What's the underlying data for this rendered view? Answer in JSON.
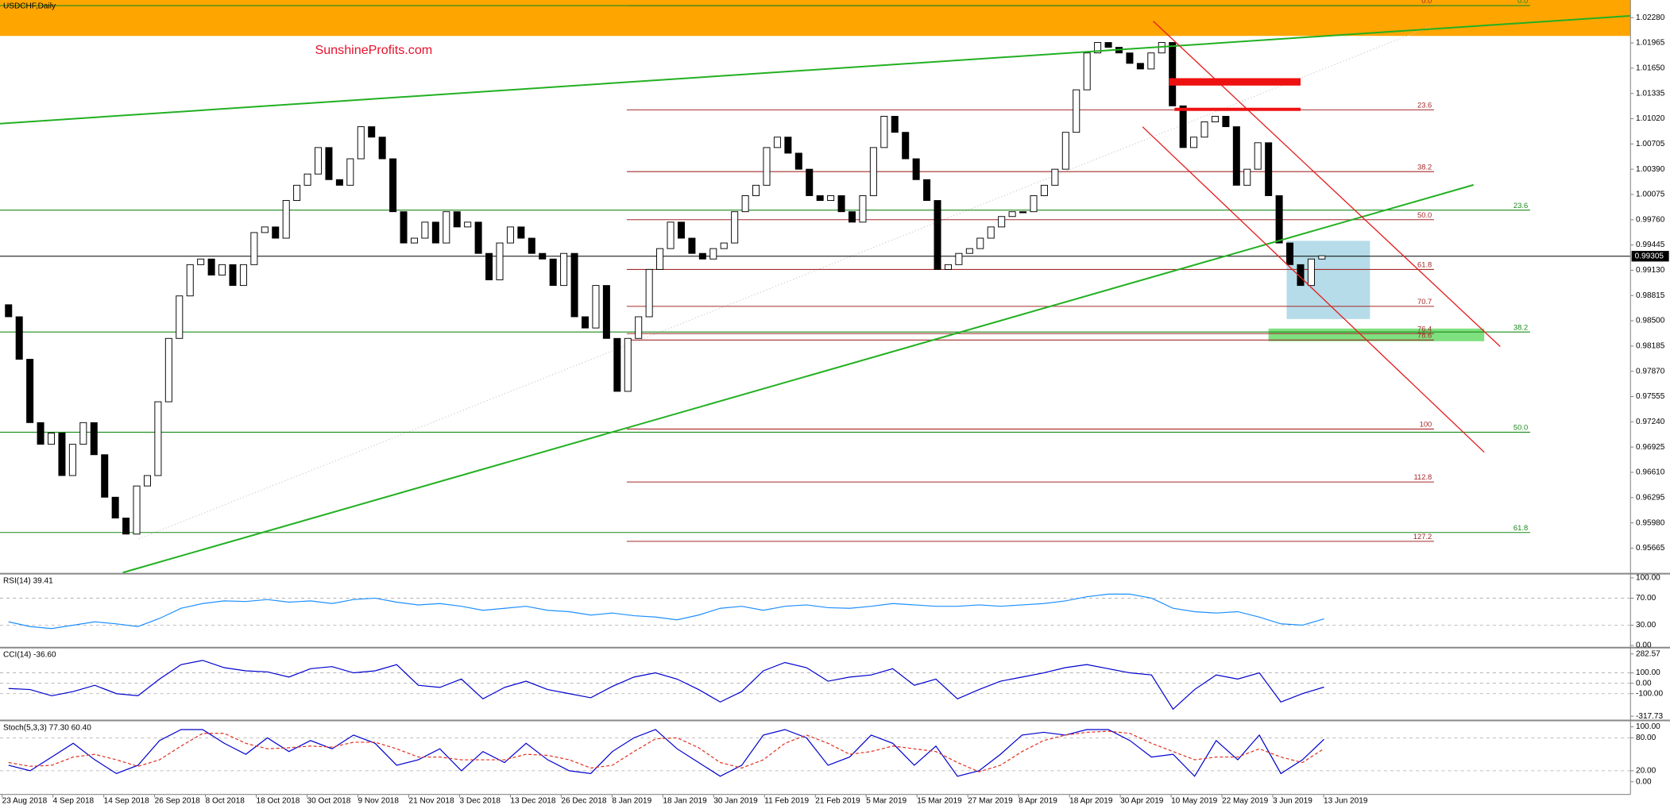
{
  "chart_data": [
    {
      "type": "candlestick",
      "title": "USDCHF,Daily",
      "watermark": "SunshineProfits.com",
      "x_labels": [
        "23 Aug 2018",
        "4 Sep 2018",
        "14 Sep 2018",
        "26 Sep 2018",
        "8 Oct 2018",
        "18 Oct 2018",
        "30 Oct 2018",
        "9 Nov 2018",
        "21 Nov 2018",
        "3 Dec 2018",
        "13 Dec 2018",
        "26 Dec 2018",
        "8 Jan 2019",
        "18 Jan 2019",
        "30 Jan 2019",
        "11 Feb 2019",
        "21 Feb 2019",
        "5 Mar 2019",
        "15 Mar 2019",
        "27 Mar 2019",
        "8 Apr 2019",
        "18 Apr 2019",
        "30 Apr 2019",
        "10 May 2019",
        "22 May 2019",
        "3 Jun 2019",
        "13 Jun 2019"
      ],
      "open": [
        0.987,
        0.9855,
        0.9802,
        0.9723,
        0.9696,
        0.971,
        0.9657,
        0.9696,
        0.9723,
        0.9683,
        0.963,
        0.9604,
        0.9584,
        0.9644,
        0.9657,
        0.9749,
        0.9828,
        0.9881,
        0.992,
        0.9927,
        0.9907,
        0.992,
        0.9894,
        0.992,
        0.996,
        0.9967,
        0.9953,
        1.0,
        1.0019,
        1.0033,
        1.0066,
        1.0026,
        1.0019,
        1.0052,
        1.0092,
        1.0079,
        1.0052,
        0.9986,
        0.9947,
        0.9953,
        0.9973,
        0.9947,
        0.9986,
        0.9967,
        0.9973,
        0.9934,
        0.9901,
        0.9947,
        0.9967,
        0.9953,
        0.9934,
        0.9927,
        0.9894,
        0.9934,
        0.9855,
        0.9841,
        0.9894,
        0.9828,
        0.9762,
        0.9828,
        0.9855,
        0.9914,
        0.994,
        0.9973,
        0.9953,
        0.9934,
        0.9927,
        0.994,
        0.9947,
        0.9986,
        1.0006,
        1.0019,
        1.0066,
        1.0079,
        1.0059,
        1.0039,
        1.0006,
        1.0,
        1.0006,
        0.9986,
        0.9973,
        1.0006,
        1.0066,
        1.0105,
        1.0085,
        1.0052,
        1.0026,
        1.0,
        0.9914,
        0.992,
        0.9934,
        0.994,
        0.9953,
        0.9967,
        0.998,
        0.9986,
        0.9986,
        1.0006,
        1.0019,
        1.0039,
        1.0085,
        1.0138,
        1.0184,
        1.0197,
        1.0191,
        1.0184,
        1.0171,
        1.0164,
        1.0184,
        1.0197,
        1.0118,
        1.0066,
        1.0079,
        1.0098,
        1.0105,
        1.0092,
        1.0019,
        1.0039,
        1.0072,
        1.0006,
        0.9947,
        0.992,
        0.9894,
        0.9927
      ],
      "close": [
        0.9855,
        0.9802,
        0.9723,
        0.9696,
        0.971,
        0.9657,
        0.9696,
        0.9723,
        0.9683,
        0.963,
        0.9604,
        0.9584,
        0.9644,
        0.9657,
        0.9749,
        0.9828,
        0.9881,
        0.992,
        0.9927,
        0.9907,
        0.992,
        0.9894,
        0.992,
        0.996,
        0.9967,
        0.9953,
        1.0,
        1.0019,
        1.0033,
        1.0066,
        1.0026,
        1.0019,
        1.0052,
        1.0092,
        1.0079,
        1.0052,
        0.9986,
        0.9947,
        0.9953,
        0.9973,
        0.9947,
        0.9986,
        0.9967,
        0.9973,
        0.9934,
        0.9901,
        0.9947,
        0.9967,
        0.9953,
        0.9934,
        0.9927,
        0.9894,
        0.9934,
        0.9855,
        0.9841,
        0.9894,
        0.9828,
        0.9762,
        0.9828,
        0.9855,
        0.9914,
        0.994,
        0.9973,
        0.9953,
        0.9934,
        0.9927,
        0.994,
        0.9947,
        0.9986,
        1.0006,
        1.0019,
        1.0066,
        1.0079,
        1.0059,
        1.0039,
        1.0006,
        1.0,
        1.0006,
        0.9986,
        0.9973,
        1.0006,
        1.0066,
        1.0105,
        1.0085,
        1.0052,
        1.0026,
        1.0,
        0.9914,
        0.992,
        0.9934,
        0.994,
        0.9953,
        0.9967,
        0.998,
        0.9986,
        0.9986,
        1.0006,
        1.0019,
        1.0039,
        1.0085,
        1.0138,
        1.0184,
        1.0197,
        1.0191,
        1.0184,
        1.0171,
        1.0164,
        1.0184,
        1.0197,
        1.0118,
        1.0066,
        1.0079,
        1.0098,
        1.0105,
        1.0092,
        1.0019,
        1.0039,
        1.0072,
        1.0006,
        0.9947,
        0.992,
        0.9894,
        0.9927,
        0.9931
      ],
      "ylim": [
        0.9536,
        1.025
      ],
      "yticks": [
        {
          "value": 1.0228,
          "label": "1.02280"
        },
        1.01965,
        {
          "value": 1.0165,
          "label": "1.01650"
        },
        1.01335,
        {
          "value": 1.0102,
          "label": "1.01020"
        },
        1.00705,
        {
          "value": 1.0039,
          "label": "1.00390"
        },
        1.00075,
        {
          "value": 0.9976,
          "label": "0.99760"
        },
        0.99445,
        {
          "value": 0.9913,
          "label": "0.99130"
        },
        0.98815,
        {
          "value": 0.985,
          "label": "0.98500"
        },
        0.98185,
        {
          "value": 0.9787,
          "label": "0.97870"
        },
        0.97555,
        {
          "value": 0.9724,
          "label": "0.97240"
        },
        0.96925,
        {
          "value": 0.9661,
          "label": "0.96610"
        },
        0.96295,
        {
          "value": 0.9598,
          "label": "0.95980"
        },
        0.95665
      ],
      "last_price": 0.99305,
      "fib_red": {
        "color": "#a52a2a",
        "levels": [
          {
            "value": 0,
            "label": "0.0"
          },
          23.6,
          38.2,
          {
            "value": 50,
            "label": "50.0"
          },
          61.8,
          70.7,
          76.4,
          78.6,
          100,
          112.8,
          127.2
        ],
        "prices": [
          1.0243,
          1.0113,
          1.0036,
          0.9976,
          0.9914,
          0.9868,
          0.9834,
          0.9826,
          0.9715,
          0.9649,
          0.9575
        ]
      },
      "fib_green": {
        "color": "#1a8a1a",
        "levels": [
          {
            "value": 0,
            "label": "0.0"
          },
          23.6,
          38.2,
          {
            "value": 50,
            "label": "50.0"
          },
          61.8
        ],
        "prices": [
          1.0243,
          0.9988,
          0.9836,
          0.9711,
          0.9586
        ]
      }
    },
    {
      "type": "line",
      "title": "RSI(14) 39.41",
      "ylim": [
        0,
        100
      ],
      "yticks": [
        {
          "value": 100,
          "label": "100.00"
        },
        {
          "value": 70,
          "label": "70.00"
        },
        {
          "value": 30,
          "label": "30.00"
        },
        {
          "value": 0,
          "label": "0.00"
        }
      ],
      "series": [
        {
          "color": "#1e90ff",
          "values": [
            35,
            28,
            25,
            30,
            35,
            32,
            28,
            40,
            55,
            62,
            66,
            65,
            68,
            64,
            66,
            62,
            68,
            70,
            64,
            60,
            62,
            58,
            52,
            55,
            58,
            52,
            50,
            45,
            48,
            44,
            42,
            38,
            45,
            55,
            58,
            52,
            58,
            60,
            56,
            55,
            58,
            62,
            60,
            58,
            58,
            60,
            58,
            60,
            62,
            66,
            72,
            76,
            76,
            70,
            55,
            50,
            48,
            50,
            42,
            32,
            30,
            39.41
          ]
        }
      ]
    },
    {
      "type": "line",
      "title": "CCI(14) -36.60",
      "ylim": [
        -317.73,
        282.57
      ],
      "yticks": [
        282.57,
        {
          "value": 100,
          "label": "100.00"
        },
        {
          "value": 0,
          "label": "0.00"
        },
        {
          "value": -100,
          "label": "-100.00"
        },
        -317.73
      ],
      "series": [
        {
          "color": "#0000cd",
          "values": [
            -50,
            -60,
            -120,
            -80,
            -20,
            -100,
            -120,
            40,
            180,
            220,
            150,
            120,
            110,
            60,
            140,
            160,
            100,
            120,
            180,
            -20,
            -40,
            40,
            -150,
            -40,
            20,
            -60,
            -100,
            -140,
            -30,
            60,
            100,
            40,
            -60,
            -180,
            -80,
            120,
            200,
            150,
            20,
            60,
            80,
            140,
            -20,
            40,
            -150,
            -60,
            20,
            60,
            100,
            150,
            180,
            140,
            100,
            80,
            -250,
            -60,
            80,
            40,
            100,
            -180,
            -100,
            -36.6
          ]
        }
      ]
    },
    {
      "type": "line",
      "title": "Stoch(5,3,3) 77.30 60.40",
      "ylim": [
        0,
        100
      ],
      "yticks": [
        {
          "value": 100,
          "label": "100.00"
        },
        {
          "value": 80,
          "label": "80.00"
        },
        {
          "value": 20,
          "label": "20.00"
        },
        {
          "value": 0,
          "label": "0.00"
        }
      ],
      "series": [
        {
          "color": "#0000cd",
          "values": [
            30,
            20,
            45,
            70,
            40,
            15,
            30,
            75,
            95,
            95,
            70,
            50,
            80,
            55,
            75,
            60,
            85,
            70,
            30,
            40,
            60,
            20,
            55,
            35,
            70,
            40,
            20,
            15,
            55,
            80,
            95,
            60,
            35,
            10,
            30,
            85,
            95,
            80,
            30,
            45,
            85,
            70,
            30,
            65,
            10,
            20,
            50,
            85,
            90,
            85,
            95,
            95,
            75,
            45,
            50,
            10,
            75,
            40,
            85,
            15,
            40,
            77.3
          ]
        },
        {
          "color": "#e0301e",
          "dashed": true,
          "values": [
            35,
            28,
            30,
            45,
            50,
            40,
            28,
            40,
            65,
            88,
            88,
            70,
            60,
            62,
            65,
            63,
            72,
            72,
            60,
            45,
            45,
            40,
            40,
            40,
            50,
            48,
            40,
            25,
            30,
            55,
            78,
            80,
            62,
            35,
            25,
            40,
            70,
            85,
            70,
            50,
            55,
            65,
            60,
            55,
            35,
            18,
            30,
            55,
            75,
            85,
            90,
            92,
            88,
            70,
            55,
            40,
            45,
            45,
            60,
            45,
            35,
            60.4
          ]
        }
      ]
    }
  ]
}
